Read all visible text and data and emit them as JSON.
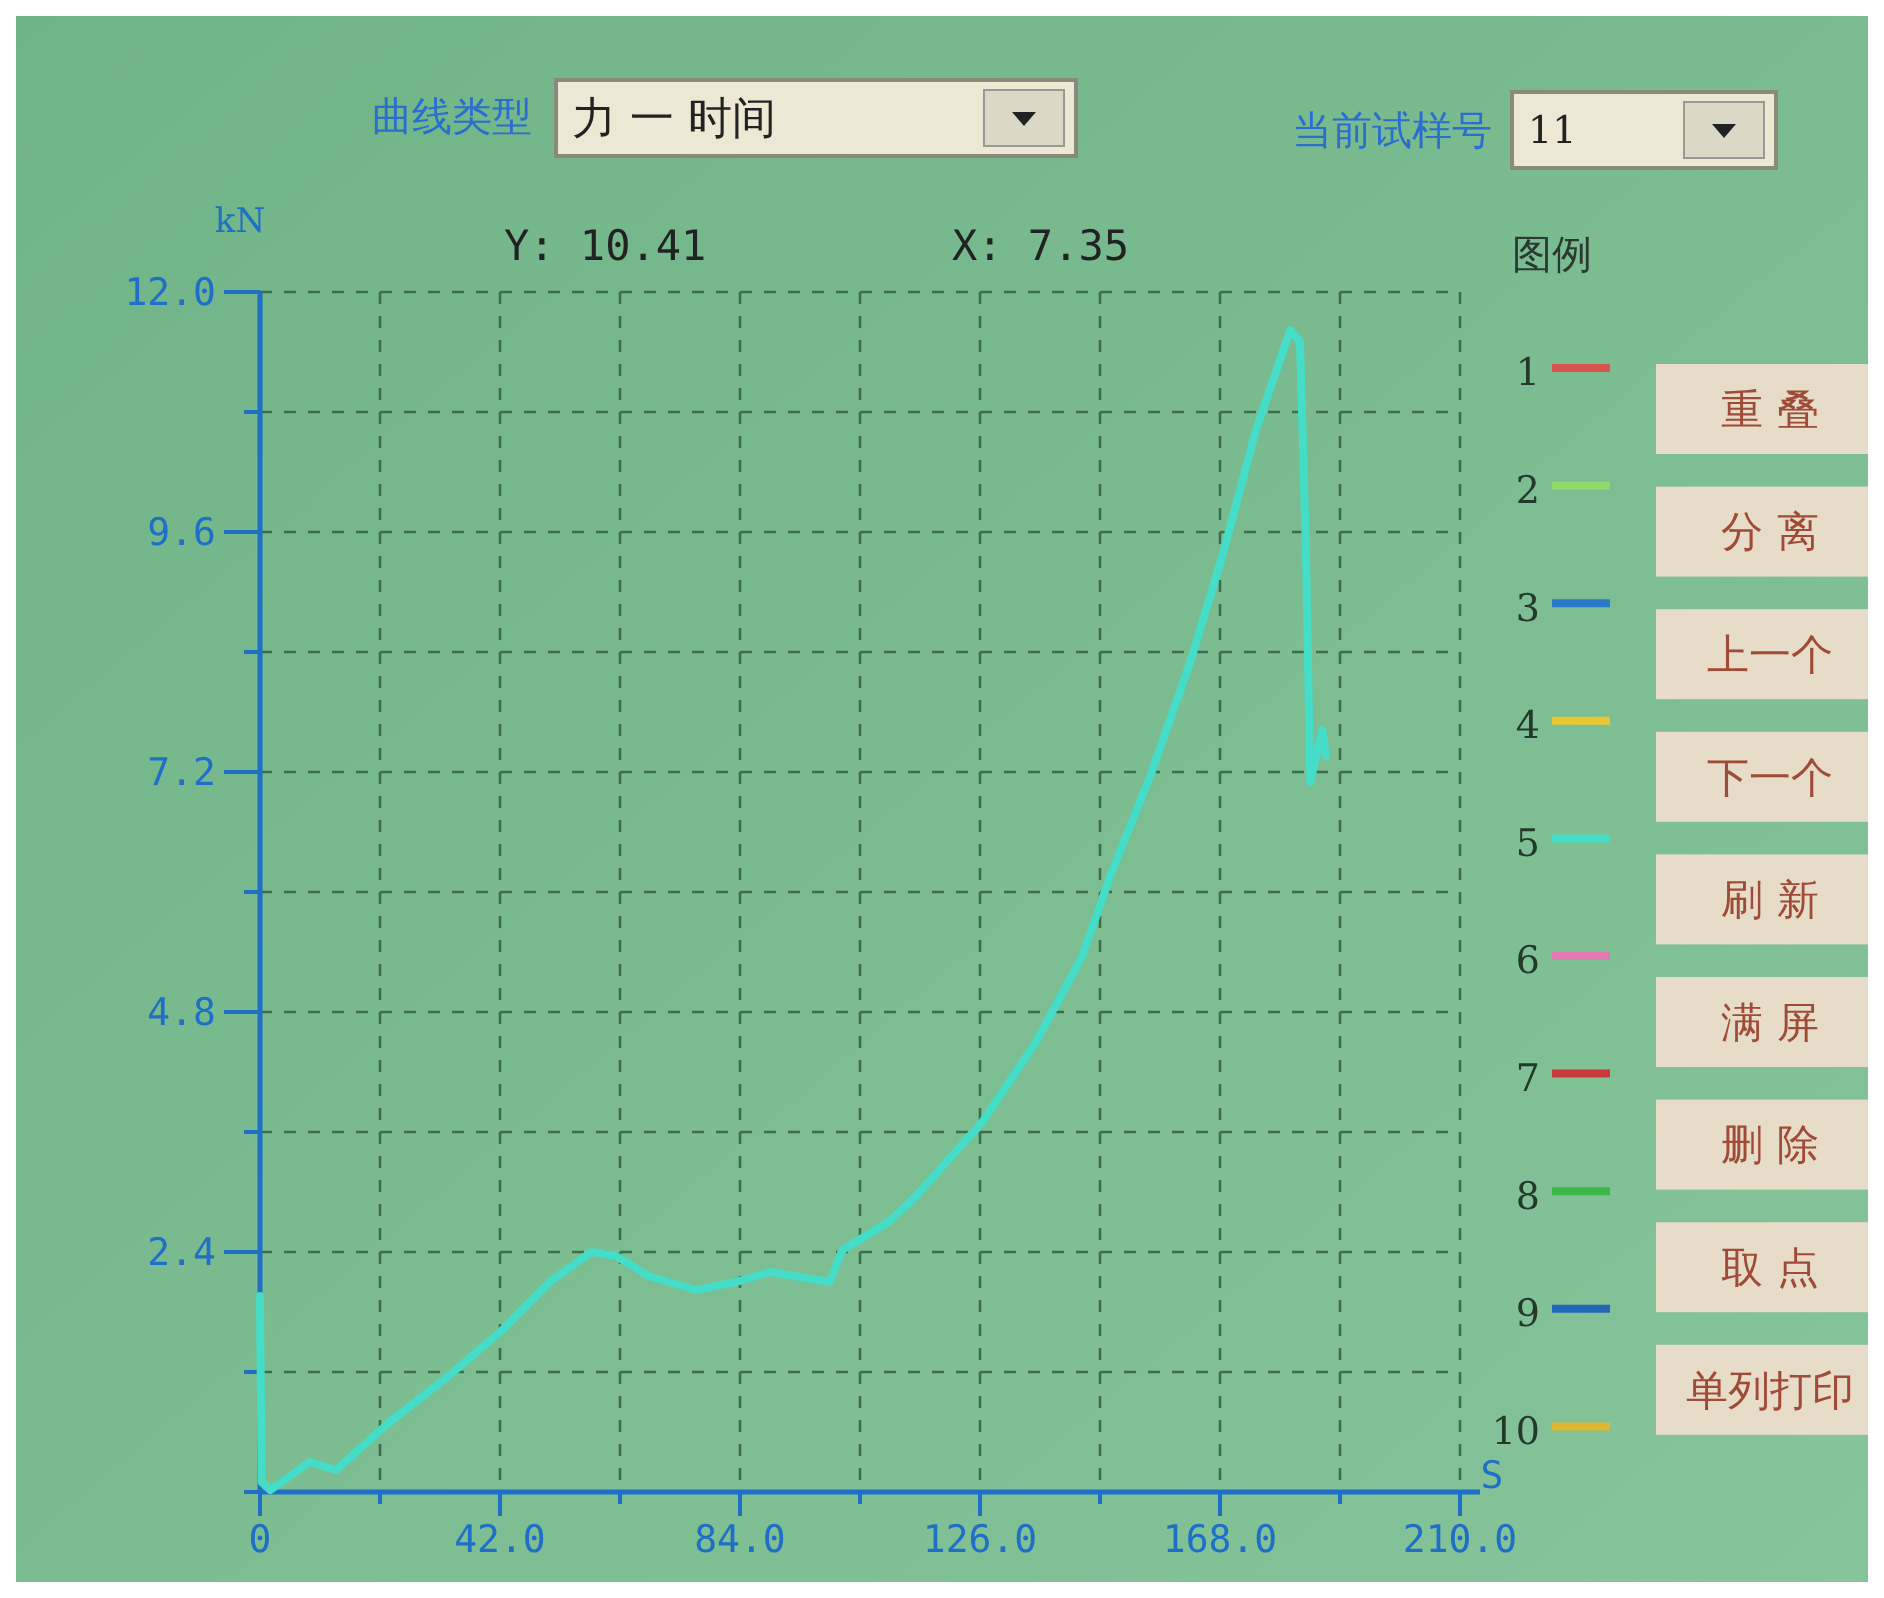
{
  "chart_data": {
    "type": "line",
    "xlabel": "S",
    "ylabel": "kN",
    "legend_title": "图例",
    "legend": "right",
    "grid": true,
    "line_style": "solid",
    "xlim": [
      0,
      210
    ],
    "ylim": [
      0,
      12
    ],
    "xticks": [
      {
        "value": 0,
        "label": "0"
      },
      {
        "value": 21,
        "label": null
      },
      {
        "value": 42,
        "label": "42.0"
      },
      {
        "value": 63,
        "label": null
      },
      {
        "value": 84,
        "label": "84.0"
      },
      {
        "value": 105,
        "label": null
      },
      {
        "value": 126,
        "label": "126.0"
      },
      {
        "value": 147,
        "label": null
      },
      {
        "value": 168,
        "label": "168.0"
      },
      {
        "value": 189,
        "label": null
      },
      {
        "value": 210,
        "label": "210.0"
      }
    ],
    "yticks": [
      {
        "value": 0,
        "label": null
      },
      {
        "value": 1.2,
        "label": null
      },
      {
        "value": 2.4,
        "label": "2.4"
      },
      {
        "value": 3.6,
        "label": null
      },
      {
        "value": 4.8,
        "label": "4.8"
      },
      {
        "value": 6,
        "label": null
      },
      {
        "value": 7.2,
        "label": "7.2"
      },
      {
        "value": 8.4,
        "label": null
      },
      {
        "value": 9.6,
        "label": "9.6"
      },
      {
        "value": 10.8,
        "label": null
      },
      {
        "value": 12,
        "label": "12.0"
      }
    ],
    "series": [
      {
        "name": "1",
        "color": "#d9534f"
      },
      {
        "name": "2",
        "color": "#8fd86a"
      },
      {
        "name": "3",
        "color": "#2a78c8"
      },
      {
        "name": "4",
        "color": "#e8c832"
      },
      {
        "name": "5",
        "color": "#45dcc8",
        "x": [
          0,
          0.3,
          1.8,
          8.7,
          13.3,
          22.7,
          33,
          42.4,
          50.7,
          58,
          62.3,
          68,
          76.3,
          83.3,
          89.3,
          99.7,
          101.9,
          110,
          114.8,
          126.4,
          135.8,
          143.9,
          148.8,
          155.8,
          162.8,
          168.4,
          174.3,
          180.3,
          182,
          183,
          183.8,
          185.9,
          186.6
        ],
        "values": [
          1.96,
          0.1,
          0.02,
          0.3,
          0.22,
          0.7,
          1.16,
          1.62,
          2.1,
          2.4,
          2.36,
          2.16,
          2.02,
          2.1,
          2.2,
          2.1,
          2.42,
          2.7,
          2.96,
          3.7,
          4.5,
          5.36,
          6.16,
          7.16,
          8.3,
          9.36,
          10.62,
          11.62,
          11.5,
          9.5,
          7.1,
          7.62,
          7.36
        ]
      },
      {
        "name": "6",
        "color": "#e07ab0"
      },
      {
        "name": "7",
        "color": "#c83a3a"
      },
      {
        "name": "8",
        "color": "#3cb84a"
      },
      {
        "name": "9",
        "color": "#2268b8"
      },
      {
        "name": "10",
        "color": "#e0b830"
      }
    ],
    "annotations": [
      "曲线类型",
      "力 一 时间",
      "当前试样号",
      "11",
      "Y: 10.41",
      "X: 7.35",
      "重 叠",
      "分 离",
      "上一个",
      "下一个",
      "刷 新",
      "满 屏",
      "删 除",
      "取 点",
      "单列打印"
    ]
  }
}
